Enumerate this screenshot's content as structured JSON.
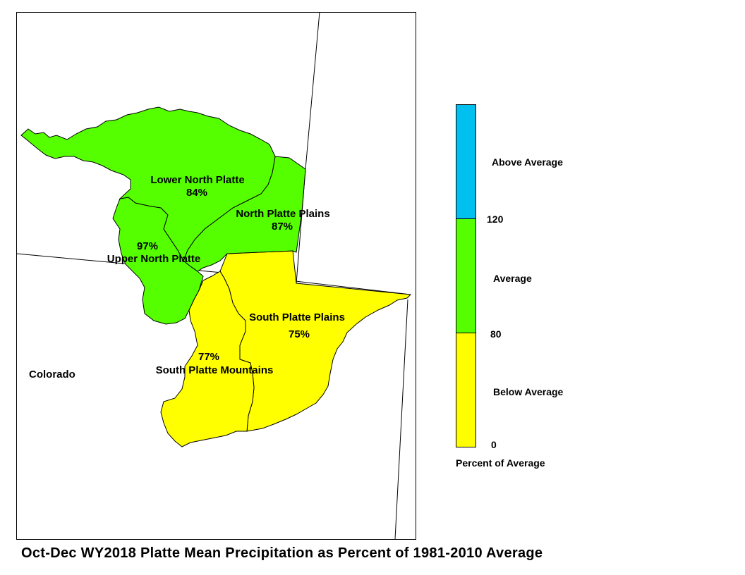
{
  "caption": "Oct-Dec WY2018 Platte Mean Precipitation as Percent of 1981-2010 Average",
  "state_label": "Colorado",
  "colors": {
    "above": "#00C0F0",
    "average": "#55FF00",
    "below": "#FFFF00",
    "border": "#000000"
  },
  "basins": [
    {
      "name": "Lower North Platte",
      "percent": "84%",
      "category": "average"
    },
    {
      "name": "North Platte Plains",
      "percent": "87%",
      "category": "average"
    },
    {
      "name": "Upper North Platte",
      "percent": "97%",
      "category": "average"
    },
    {
      "name": "South Platte Plains",
      "percent": "75%",
      "category": "below"
    },
    {
      "name": "South Platte Mountains",
      "percent": "77%",
      "category": "below"
    }
  ],
  "legend": {
    "title": "Percent of Average",
    "categories": [
      {
        "label": "Above Average",
        "color": "#00C0F0"
      },
      {
        "label": "Average",
        "color": "#55FF00"
      },
      {
        "label": "Below Average",
        "color": "#FFFF00"
      }
    ],
    "breaks": [
      "120",
      "80",
      "0"
    ]
  }
}
